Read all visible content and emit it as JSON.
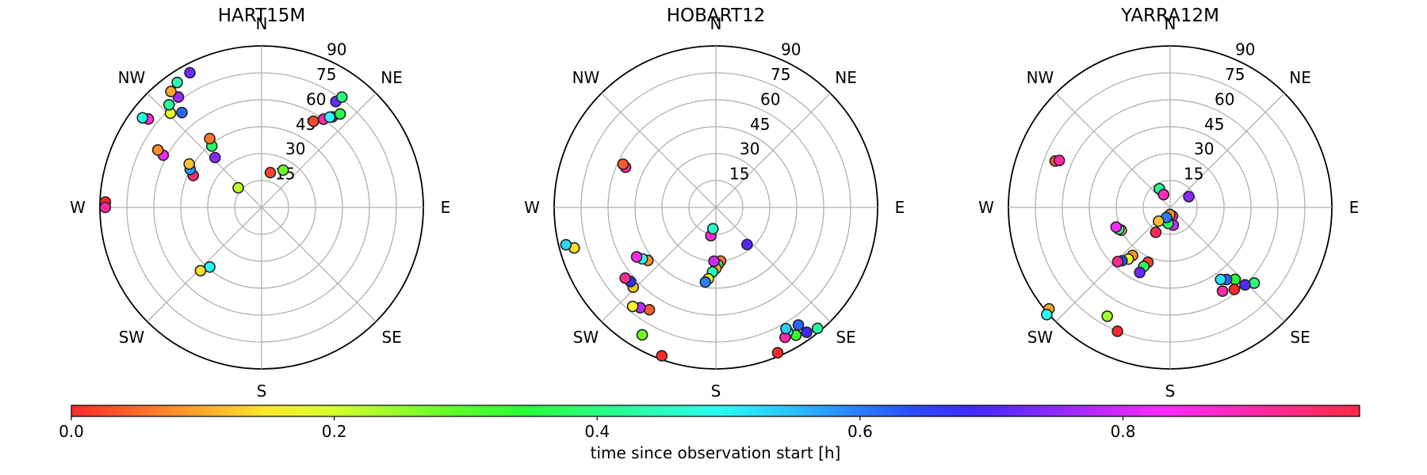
{
  "chart_data": {
    "type": "scatter",
    "projection": "polar-skyplot",
    "radial_axis": {
      "quantity": "zenith angle",
      "range": [
        0,
        90
      ],
      "ticks": [
        "15",
        "30",
        "45",
        "60",
        "75",
        "90"
      ]
    },
    "direction_labels": [
      "E",
      "NE",
      "N",
      "NW",
      "W",
      "SW",
      "S",
      "SE"
    ],
    "colorbar": {
      "label": "time since observation start [h]",
      "range": [
        0,
        0.98
      ],
      "ticks": [
        "0.0",
        "0.2",
        "0.4",
        "0.6",
        "0.8"
      ],
      "tick_values": [
        0,
        0.2,
        0.4,
        0.6,
        0.8
      ],
      "colormap": "hsv"
    },
    "panels": [
      {
        "title": "HART15M",
        "points": [
          {
            "az": 59,
            "zen": 56,
            "t": 0.02
          },
          {
            "az": 55,
            "zen": 72,
            "t": 0.72
          },
          {
            "az": 54,
            "zen": 76,
            "t": 0.4
          },
          {
            "az": 52,
            "zen": 64,
            "t": 0.7
          },
          {
            "az": 50,
            "zen": 68,
            "t": 0.36
          },
          {
            "az": 55,
            "zen": 60,
            "t": 0.9
          },
          {
            "az": 53,
            "zen": 63,
            "t": 0.5
          },
          {
            "az": 76,
            "zen": 20,
            "t": 0.02
          },
          {
            "az": 60,
            "zen": 24,
            "t": 0.28
          },
          {
            "az": 140,
            "zen": 17,
            "t": 0.22
          },
          {
            "az": 133,
            "zen": 38,
            "t": 0.74
          },
          {
            "az": 129,
            "zen": 44,
            "t": 0.38
          },
          {
            "az": 127,
            "zen": 48,
            "t": 0.06
          },
          {
            "az": 155,
            "zen": 42,
            "t": 0.94
          },
          {
            "az": 152,
            "zen": 45,
            "t": 0.58
          },
          {
            "az": 149,
            "zen": 47,
            "t": 0.12
          },
          {
            "az": 130,
            "zen": 69,
            "t": 0.62
          },
          {
            "az": 134,
            "zen": 73,
            "t": 0.18
          },
          {
            "az": 132,
            "zen": 77,
            "t": 0.42
          },
          {
            "az": 127,
            "zen": 77,
            "t": 0.76
          },
          {
            "az": 128,
            "zen": 82,
            "t": 0.1
          },
          {
            "az": 124,
            "zen": 84,
            "t": 0.44
          },
          {
            "az": 118,
            "zen": 85,
            "t": 0.72
          },
          {
            "az": 142,
            "zen": 80,
            "t": 0.86
          },
          {
            "az": 143,
            "zen": 83,
            "t": 0.48
          },
          {
            "az": 152,
            "zen": 62,
            "t": 0.82
          },
          {
            "az": 151,
            "zen": 66,
            "t": 0.08
          },
          {
            "az": 178,
            "zen": 87,
            "t": 0.0
          },
          {
            "az": 180,
            "zen": 87,
            "t": 0.9
          },
          {
            "az": 229,
            "zen": 44,
            "t": 0.5
          },
          {
            "az": 226,
            "zen": 49,
            "t": 0.14
          }
        ]
      },
      {
        "title": "HOBART12",
        "points": [
          {
            "az": 310,
            "zen": 88,
            "t": 0.42
          },
          {
            "az": 306,
            "zen": 86,
            "t": 0.68
          },
          {
            "az": 302,
            "zen": 84,
            "t": 0.32
          },
          {
            "az": 300,
            "zen": 80,
            "t": 0.5
          },
          {
            "az": 293,
            "zen": 88,
            "t": 0.0
          },
          {
            "az": 298,
            "zen": 82,
            "t": 0.9
          },
          {
            "az": 300,
            "zen": 78,
            "t": 0.54
          },
          {
            "az": 305,
            "zen": 80,
            "t": 0.62
          },
          {
            "az": 310,
            "zen": 27,
            "t": 0.7
          },
          {
            "az": 275,
            "zen": 30,
            "t": 0.06
          },
          {
            "az": 272,
            "zen": 32,
            "t": 0.38
          },
          {
            "az": 270,
            "zen": 34,
            "t": 0.1
          },
          {
            "az": 267,
            "zen": 36,
            "t": 0.44
          },
          {
            "az": 264,
            "zen": 40,
            "t": 0.18
          },
          {
            "az": 262,
            "zen": 42,
            "t": 0.6
          },
          {
            "az": 268,
            "zen": 30,
            "t": 0.8
          },
          {
            "az": 260,
            "zen": 16,
            "t": 0.86
          },
          {
            "az": 262,
            "zen": 12,
            "t": 0.46
          },
          {
            "az": 237,
            "zen": 68,
            "t": 0.04
          },
          {
            "az": 233,
            "zen": 70,
            "t": 0.78
          },
          {
            "az": 230,
            "zen": 72,
            "t": 0.16
          },
          {
            "az": 224,
            "zen": 64,
            "t": 0.12
          },
          {
            "az": 221,
            "zen": 63,
            "t": 0.66
          },
          {
            "az": 218,
            "zen": 64,
            "t": 0.92
          },
          {
            "az": 218,
            "zen": 48,
            "t": 0.08
          },
          {
            "az": 215,
            "zen": 50,
            "t": 0.5
          },
          {
            "az": 212,
            "zen": 52,
            "t": 0.85
          },
          {
            "az": 250,
            "zen": 88,
            "t": 0.0
          },
          {
            "az": 240,
            "zen": 82,
            "t": 0.28
          },
          {
            "az": 196,
            "zen": 82,
            "t": 0.14
          },
          {
            "az": 194,
            "zen": 86,
            "t": 0.53
          },
          {
            "az": 156,
            "zen": 55,
            "t": 0.9
          },
          {
            "az": 155,
            "zen": 57,
            "t": 0.04
          }
        ]
      },
      {
        "title": "YARRA12M",
        "points": [
          {
            "az": 318,
            "zen": 63,
            "t": 0.4
          },
          {
            "az": 314,
            "zen": 60,
            "t": 0.7
          },
          {
            "az": 312,
            "zen": 54,
            "t": 0.34
          },
          {
            "az": 308,
            "zen": 58,
            "t": 0.0
          },
          {
            "az": 308,
            "zen": 51,
            "t": 0.62
          },
          {
            "az": 305,
            "zen": 49,
            "t": 0.52
          },
          {
            "az": 302,
            "zen": 55,
            "t": 0.9
          },
          {
            "az": 30,
            "zen": 12,
            "t": 0.74
          },
          {
            "az": 285,
            "zen": 5,
            "t": 0.86
          },
          {
            "az": 280,
            "zen": 10,
            "t": 0.8
          },
          {
            "az": 263,
            "zen": 9,
            "t": 0.38
          },
          {
            "az": 268,
            "zen": 4,
            "t": 0.08
          },
          {
            "az": 250,
            "zen": 6,
            "t": 0.6
          },
          {
            "az": 230,
            "zen": 10,
            "t": 0.12
          },
          {
            "az": 240,
            "zen": 16,
            "t": 0.96
          },
          {
            "az": 120,
            "zen": 12,
            "t": 0.42
          },
          {
            "az": 117,
            "zen": 8,
            "t": 0.88
          },
          {
            "az": 248,
            "zen": 33,
            "t": 0.02
          },
          {
            "az": 246,
            "zen": 36,
            "t": 0.38
          },
          {
            "az": 245,
            "zen": 40,
            "t": 0.72
          },
          {
            "az": 232,
            "zen": 34,
            "t": 0.08
          },
          {
            "az": 231,
            "zen": 37,
            "t": 0.18
          },
          {
            "az": 228,
            "zen": 40,
            "t": 0.64
          },
          {
            "az": 226,
            "zen": 42,
            "t": 0.92
          },
          {
            "az": 205,
            "zen": 30,
            "t": 0.12
          },
          {
            "az": 203,
            "zen": 31,
            "t": 0.46
          },
          {
            "az": 200,
            "zen": 32,
            "t": 0.84
          },
          {
            "az": 247,
            "zen": 75,
            "t": 0.0
          },
          {
            "az": 240,
            "zen": 70,
            "t": 0.24
          },
          {
            "az": 220,
            "zen": 88,
            "t": 0.1
          },
          {
            "az": 221,
            "zen": 91,
            "t": 0.5
          },
          {
            "az": 158,
            "zen": 69,
            "t": 0.04
          },
          {
            "az": 157,
            "zen": 67,
            "t": 0.9
          }
        ]
      }
    ]
  }
}
